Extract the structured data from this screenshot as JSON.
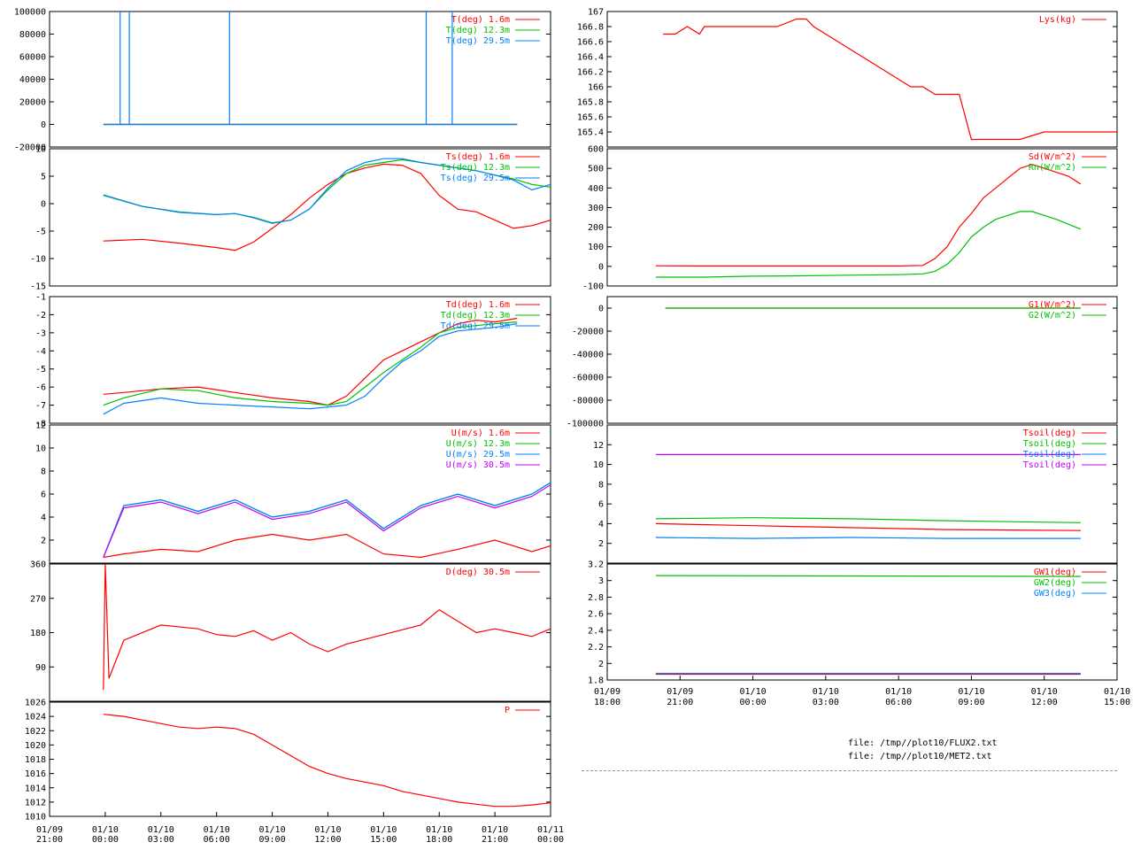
{
  "files": [
    "file: /tmp//plot10/FLUX2.txt",
    "file: /tmp//plot10/MET2.txt"
  ],
  "x_ticks_left": [
    [
      "01/09",
      "21:00"
    ],
    [
      "01/10",
      "00:00"
    ],
    [
      "01/10",
      "03:00"
    ],
    [
      "01/10",
      "06:00"
    ],
    [
      "01/10",
      "09:00"
    ],
    [
      "01/10",
      "12:00"
    ],
    [
      "01/10",
      "15:00"
    ],
    [
      "01/10",
      "18:00"
    ],
    [
      "01/10",
      "21:00"
    ],
    [
      "01/11",
      "00:00"
    ]
  ],
  "x_ticks_right": [
    [
      "01/09",
      "18:00"
    ],
    [
      "01/09",
      "21:00"
    ],
    [
      "01/10",
      "00:00"
    ],
    [
      "01/10",
      "03:00"
    ],
    [
      "01/10",
      "06:00"
    ],
    [
      "01/10",
      "09:00"
    ],
    [
      "01/10",
      "12:00"
    ],
    [
      "01/10",
      "15:00"
    ]
  ],
  "chart_data": [
    {
      "type": "line",
      "x_unit": "hours since 01/09 21:00",
      "xlim": [
        0,
        27
      ],
      "ylim": [
        -20000,
        100000
      ],
      "ytick_labels": [
        "100000",
        "80000",
        "60000",
        "40000",
        "20000",
        "0",
        "-20000"
      ],
      "series": [
        {
          "name": "T(deg)  1.6m",
          "color": "#ff0000",
          "x": [
            2.9,
            25.2
          ],
          "y": [
            0,
            0
          ]
        },
        {
          "name": "T(deg) 12.3m",
          "color": "#00c000",
          "x": [
            2.9,
            25.2
          ],
          "y": [
            0,
            0
          ]
        },
        {
          "name": "T(deg) 29.5m",
          "color": "#0080ff",
          "x": [
            2.9,
            3.8,
            3.8,
            3.8,
            4.3,
            4.3,
            4.3,
            9.7,
            9.7,
            9.7,
            20.3,
            20.3,
            20.3,
            21.7,
            21.7,
            21.7,
            25.2
          ],
          "y": [
            0,
            0,
            100000,
            0,
            0,
            100000,
            0,
            0,
            100000,
            0,
            0,
            100000,
            0,
            0,
            100000,
            0,
            0
          ]
        }
      ]
    },
    {
      "type": "line",
      "x_unit": "hours since 01/09 21:00",
      "xlim": [
        0,
        27
      ],
      "ylim": [
        -15,
        10
      ],
      "ytick_labels": [
        "10",
        "5",
        "0",
        "-5",
        "-10",
        "-15"
      ],
      "series": [
        {
          "name": "Ts(deg)  1.6m",
          "color": "#ff0000",
          "x": [
            2.9,
            5,
            7,
            9,
            10,
            11,
            12,
            13,
            14,
            15,
            16,
            17,
            18,
            19,
            20,
            21,
            22,
            23,
            24,
            25,
            26,
            27
          ],
          "y": [
            -6.8,
            -6.5,
            -7.2,
            -8,
            -8.5,
            -7,
            -4.5,
            -2,
            1,
            3.5,
            5.5,
            6.5,
            7.2,
            7,
            5.5,
            1.5,
            -1,
            -1.5,
            -3,
            -4.5,
            -4,
            -3
          ]
        },
        {
          "name": "Ts(deg) 12.3m",
          "color": "#00c000",
          "x": [
            2.9,
            5,
            7,
            9,
            10,
            11,
            12,
            13,
            14,
            15,
            16,
            17,
            18,
            19,
            20,
            21,
            22,
            23,
            24,
            25,
            26,
            27
          ],
          "y": [
            1.5,
            -0.5,
            -1.5,
            -2,
            -1.8,
            -2.5,
            -3.5,
            -3,
            -1,
            2.5,
            5.5,
            7,
            7.5,
            8,
            7.5,
            7,
            6.5,
            6,
            5.2,
            4.5,
            3.5,
            3
          ]
        },
        {
          "name": "Ts(deg) 29.5m",
          "color": "#0080ff",
          "x": [
            2.9,
            5,
            7,
            9,
            10,
            11,
            12,
            13,
            14,
            15,
            16,
            17,
            18,
            19,
            20,
            21,
            22,
            23,
            24,
            25,
            26,
            27
          ],
          "y": [
            1.6,
            -0.5,
            -1.6,
            -2,
            -1.8,
            -2.6,
            -3.6,
            -3,
            -1,
            2.8,
            6,
            7.5,
            8.2,
            8.2,
            7.5,
            7,
            6.5,
            6,
            5.2,
            4.3,
            2.5,
            3.5
          ]
        }
      ]
    },
    {
      "type": "line",
      "x_unit": "hours since 01/09 21:00",
      "xlim": [
        0,
        27
      ],
      "ylim": [
        -8,
        -1
      ],
      "ytick_labels": [
        "-1",
        "-2",
        "-3",
        "-4",
        "-5",
        "-6",
        "-7",
        "-8"
      ],
      "series": [
        {
          "name": "Td(deg)  1.6m",
          "color": "#ff0000",
          "x": [
            2.9,
            4,
            6,
            8,
            10,
            12,
            14,
            15,
            16,
            17,
            18,
            19,
            20,
            21,
            22,
            23,
            24,
            25.2
          ],
          "y": [
            -6.4,
            -6.3,
            -6.1,
            -6,
            -6.3,
            -6.6,
            -6.8,
            -7,
            -6.5,
            -5.5,
            -4.5,
            -4,
            -3.5,
            -3,
            -2.5,
            -2.3,
            -2.4,
            -2.2
          ]
        },
        {
          "name": "Td(deg) 12.3m",
          "color": "#00c000",
          "x": [
            2.9,
            4,
            6,
            8,
            10,
            12,
            14,
            15,
            16,
            17,
            18,
            19,
            20,
            21,
            22,
            23,
            24,
            25.2
          ],
          "y": [
            -7,
            -6.6,
            -6.1,
            -6.2,
            -6.6,
            -6.8,
            -6.9,
            -7,
            -6.8,
            -6,
            -5.2,
            -4.5,
            -3.8,
            -3,
            -2.7,
            -2.6,
            -2.5,
            -2.4
          ]
        },
        {
          "name": "Td(deg) 29.5m",
          "color": "#0080ff",
          "x": [
            2.9,
            4,
            6,
            8,
            10,
            12,
            14,
            15,
            16,
            17,
            18,
            19,
            20,
            21,
            22,
            23,
            24,
            25.2
          ],
          "y": [
            -7.5,
            -6.9,
            -6.6,
            -6.9,
            -7,
            -7.1,
            -7.2,
            -7.1,
            -7,
            -6.5,
            -5.5,
            -4.6,
            -4,
            -3.2,
            -2.9,
            -2.8,
            -2.7,
            -2.5
          ]
        }
      ]
    },
    {
      "type": "line",
      "x_unit": "hours since 01/09 21:00",
      "xlim": [
        0,
        27
      ],
      "ylim": [
        0,
        12
      ],
      "ytick_labels": [
        "12",
        "10",
        "8",
        "6",
        "4",
        "2"
      ],
      "series": [
        {
          "name": "U(m/s)  1.6m",
          "color": "#ff0000",
          "x": [
            2.9,
            4,
            6,
            8,
            10,
            12,
            14,
            16,
            18,
            20,
            22,
            24,
            26,
            27
          ],
          "y": [
            0.5,
            0.8,
            1.2,
            1,
            2,
            2.5,
            2,
            2.5,
            0.8,
            0.5,
            1.2,
            2,
            1,
            1.5
          ]
        },
        {
          "name": "U(m/s) 12.3m",
          "color": "#00c000",
          "x": [
            2.9,
            4,
            6,
            8,
            10,
            12,
            14,
            16,
            18,
            20,
            22,
            24,
            26,
            27
          ],
          "y": [
            0.5,
            5,
            5.5,
            4.5,
            5.5,
            4,
            4.5,
            5.5,
            3,
            5,
            6,
            5,
            6,
            7
          ]
        },
        {
          "name": "U(m/s) 29.5m",
          "color": "#0080ff",
          "x": [
            2.9,
            4,
            6,
            8,
            10,
            12,
            14,
            16,
            18,
            20,
            22,
            24,
            26,
            27
          ],
          "y": [
            0.5,
            5,
            5.5,
            4.5,
            5.5,
            4,
            4.5,
            5.5,
            3,
            5,
            6,
            5,
            6,
            7
          ]
        },
        {
          "name": "U(m/s) 30.5m",
          "color": "#c000ff",
          "x": [
            2.9,
            4,
            6,
            8,
            10,
            12,
            14,
            16,
            18,
            20,
            22,
            24,
            26,
            27
          ],
          "y": [
            0.5,
            4.8,
            5.3,
            4.3,
            5.3,
            3.8,
            4.3,
            5.3,
            2.8,
            4.8,
            5.8,
            4.8,
            5.8,
            6.8
          ]
        }
      ]
    },
    {
      "type": "line",
      "x_unit": "hours since 01/09 21:00",
      "xlim": [
        0,
        27
      ],
      "ylim": [
        0,
        360
      ],
      "ytick_labels": [
        "360",
        "270",
        "180",
        "90"
      ],
      "series": [
        {
          "name": "D(deg)  30.5m",
          "color": "#ff0000",
          "x": [
            2.9,
            3,
            3.2,
            4,
            6,
            8,
            9,
            10,
            11,
            12,
            13,
            14,
            15,
            16,
            18,
            20,
            21,
            22,
            23,
            24,
            25,
            26,
            27
          ],
          "y": [
            30,
            360,
            60,
            160,
            200,
            190,
            175,
            170,
            185,
            160,
            180,
            150,
            130,
            150,
            175,
            200,
            240,
            210,
            180,
            190,
            180,
            170,
            190
          ]
        }
      ]
    },
    {
      "type": "line",
      "x_unit": "hours since 01/09 21:00",
      "xlim": [
        0,
        27
      ],
      "ylim": [
        1010,
        1026
      ],
      "ytick_labels": [
        "1026",
        "1024",
        "1022",
        "1020",
        "1018",
        "1016",
        "1014",
        "1012",
        "1010"
      ],
      "series": [
        {
          "name": "P",
          "color": "#ff0000",
          "x": [
            2.9,
            4,
            5,
            6,
            7,
            8,
            9,
            10,
            11,
            12,
            13,
            14,
            15,
            16,
            17,
            18,
            19,
            20,
            21,
            22,
            23,
            24,
            25,
            26,
            27
          ],
          "y": [
            1024.3,
            1024,
            1023.5,
            1023,
            1022.5,
            1022.3,
            1022.5,
            1022.3,
            1021.5,
            1020,
            1018.5,
            1017,
            1016,
            1015.3,
            1014.8,
            1014.3,
            1013.5,
            1013,
            1012.5,
            1012,
            1011.7,
            1011.4,
            1011.4,
            1011.6,
            1011.9
          ]
        }
      ]
    },
    {
      "type": "line",
      "x_unit": "hours since 01/09 18:00",
      "xlim": [
        0,
        21
      ],
      "ylim": [
        165.2,
        167
      ],
      "ytick_labels": [
        "167",
        "166.8",
        "166.6",
        "166.4",
        "166.2",
        "166",
        "165.8",
        "165.6",
        "165.4"
      ],
      "series": [
        {
          "name": "Lys(kg)",
          "color": "#ff0000",
          "x": [
            2.3,
            2.8,
            3.3,
            3.8,
            4,
            5,
            6,
            7,
            7.8,
            8.2,
            8.5,
            9,
            9.5,
            10,
            10.5,
            11,
            11.5,
            12,
            12.5,
            13,
            13.5,
            14,
            14.5,
            15,
            16,
            17,
            18,
            19,
            20,
            21
          ],
          "y": [
            166.7,
            166.7,
            166.8,
            166.7,
            166.8,
            166.8,
            166.8,
            166.8,
            166.9,
            166.9,
            166.8,
            166.7,
            166.6,
            166.5,
            166.4,
            166.3,
            166.2,
            166.1,
            166.0,
            166.0,
            165.9,
            165.9,
            165.9,
            165.3,
            165.3,
            165.3,
            165.4,
            165.4,
            165.4,
            165.4
          ]
        }
      ]
    },
    {
      "type": "line",
      "x_unit": "hours since 01/09 18:00",
      "xlim": [
        0,
        21
      ],
      "ylim": [
        -100,
        600
      ],
      "ytick_labels": [
        "600",
        "500",
        "400",
        "300",
        "200",
        "100",
        "0",
        "-100"
      ],
      "series": [
        {
          "name": "Sd(W/m^2)",
          "color": "#ff0000",
          "x": [
            2,
            4,
            6,
            8,
            10,
            12,
            13,
            13.5,
            14,
            14.5,
            15,
            15.5,
            16,
            16.5,
            17,
            17.5,
            18,
            18.5,
            19,
            19.5
          ],
          "y": [
            3,
            2,
            2,
            2,
            2,
            2,
            5,
            40,
            100,
            200,
            270,
            350,
            400,
            450,
            500,
            520,
            500,
            480,
            460,
            420
          ]
        },
        {
          "name": "Rn(W/m^2)",
          "color": "#00c000",
          "x": [
            2,
            4,
            6,
            8,
            10,
            12,
            13,
            13.5,
            14,
            14.5,
            15,
            15.5,
            16,
            16.5,
            17,
            17.5,
            18,
            18.5,
            19,
            19.5
          ],
          "y": [
            -55,
            -55,
            -50,
            -48,
            -45,
            -42,
            -38,
            -25,
            10,
            70,
            150,
            200,
            240,
            260,
            280,
            280,
            260,
            240,
            215,
            190
          ]
        }
      ]
    },
    {
      "type": "line",
      "x_unit": "hours since 01/09 18:00",
      "xlim": [
        0,
        21
      ],
      "ylim": [
        -100000,
        10000
      ],
      "ytick_labels": [
        "0",
        "-20000",
        "-40000",
        "-60000",
        "-80000",
        "-100000"
      ],
      "series": [
        {
          "name": "G1(W/m^2)",
          "color": "#ff0000",
          "x": [
            2.4,
            19.5
          ],
          "y": [
            0,
            0
          ]
        },
        {
          "name": "G2(W/m^2)",
          "color": "#00c000",
          "x": [
            2.4,
            19.5
          ],
          "y": [
            0,
            0
          ]
        }
      ]
    },
    {
      "type": "line",
      "x_unit": "hours since 01/09 18:00",
      "xlim": [
        0,
        21
      ],
      "ylim": [
        0,
        14
      ],
      "ytick_labels": [
        "12",
        "10",
        "8",
        "6",
        "4",
        "2"
      ],
      "series": [
        {
          "name": "Tsoil(deg)",
          "color": "#ff0000",
          "x": [
            2,
            6,
            10,
            14,
            19.5
          ],
          "y": [
            4,
            3.8,
            3.6,
            3.4,
            3.3
          ]
        },
        {
          "name": "Tsoil(deg)",
          "color": "#00c000",
          "x": [
            2,
            6,
            10,
            14,
            19.5
          ],
          "y": [
            4.5,
            4.6,
            4.5,
            4.3,
            4.1
          ]
        },
        {
          "name": "Tsoil(deg)",
          "color": "#0080ff",
          "x": [
            2,
            6,
            10,
            14,
            19.5
          ],
          "y": [
            2.6,
            2.5,
            2.6,
            2.5,
            2.5
          ]
        },
        {
          "name": "Tsoil(deg)",
          "color": "#c000ff",
          "x": [
            2,
            6,
            10,
            14,
            19.5
          ],
          "y": [
            11,
            11,
            11,
            11,
            11
          ]
        }
      ]
    },
    {
      "type": "line",
      "x_unit": "hours since 01/09 18:00",
      "xlim": [
        0,
        21
      ],
      "ylim": [
        1.8,
        3.2
      ],
      "ytick_labels": [
        "3.2",
        "3",
        "2.8",
        "2.6",
        "2.4",
        "2.2",
        "2",
        "1.8"
      ],
      "series": [
        {
          "name": "GW1(deg)",
          "color": "#ff0000",
          "x": [
            2,
            19.5
          ],
          "y": [
            1.87,
            1.87
          ]
        },
        {
          "name": "GW2(deg)",
          "color": "#00c000",
          "x": [
            2,
            19.5
          ],
          "y": [
            3.06,
            3.05
          ]
        },
        {
          "name": "GW3(deg)",
          "color": "#0080ff",
          "x": [
            2,
            19.5
          ],
          "y": [
            1.88,
            1.88
          ]
        }
      ]
    }
  ]
}
